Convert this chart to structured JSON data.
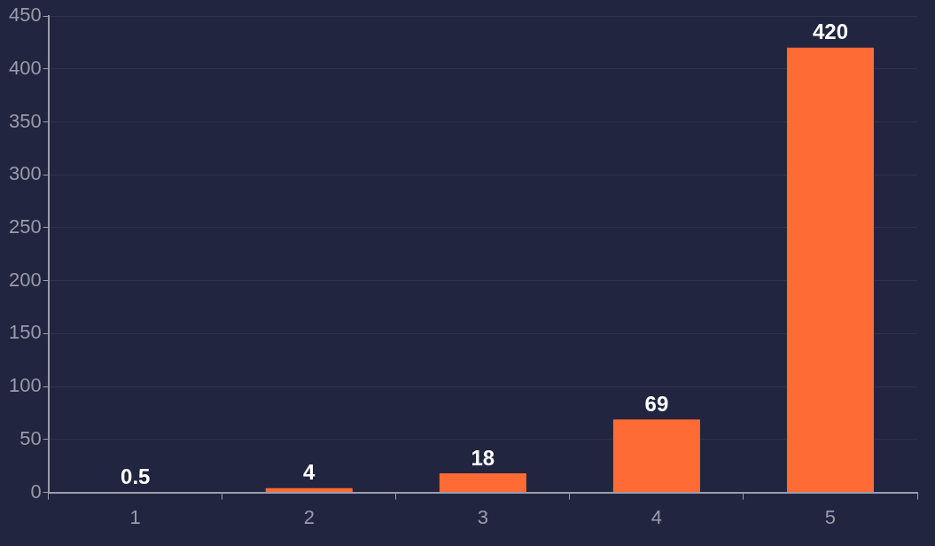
{
  "chart_data": {
    "type": "bar",
    "categories": [
      "1",
      "2",
      "3",
      "4",
      "5"
    ],
    "values": [
      0.5,
      4,
      18,
      69,
      420
    ],
    "color": "#ff6b35",
    "ylim": [
      0,
      450
    ],
    "yticks": [
      0,
      50,
      100,
      150,
      200,
      250,
      300,
      350,
      400,
      450
    ],
    "grid": "y",
    "data_labels": true,
    "legend": false
  }
}
